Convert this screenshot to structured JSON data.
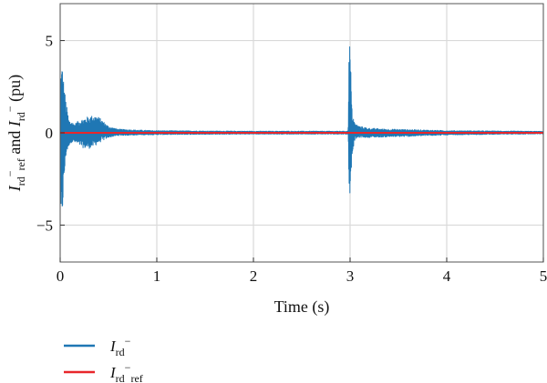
{
  "chart_data": {
    "type": "line",
    "xlabel": "Time (s)",
    "ylabel": {
      "sym1": "I",
      "sub1": "rd",
      "sup1": "−",
      "sub1b": "ref",
      "conj": " and ",
      "sym2": "I",
      "sub2": "rd",
      "sup2": "−",
      "unit": " (pu)"
    },
    "xlim": [
      0,
      5
    ],
    "ylim": [
      -7,
      7
    ],
    "xticks": [
      0,
      1,
      2,
      3,
      4,
      5
    ],
    "yticks": [
      -5,
      0,
      5
    ],
    "ytick_labels": [
      "−5",
      "0",
      "5"
    ],
    "grid": true,
    "legend_position": "below",
    "series": [
      {
        "key": "ird",
        "legend_sym": "I",
        "legend_sub": "rd",
        "legend_sup": "−",
        "legend_sub2": "",
        "color": "#1f77b4",
        "envelope": [
          [
            0.0,
            0.0,
            0.0
          ],
          [
            0.005,
            -5.6,
            3.6
          ],
          [
            0.02,
            -4.8,
            3.9
          ],
          [
            0.04,
            -2.8,
            2.6
          ],
          [
            0.06,
            -1.3,
            1.7
          ],
          [
            0.09,
            -0.7,
            0.7
          ],
          [
            0.12,
            -0.5,
            0.6
          ],
          [
            0.15,
            -0.55,
            0.5
          ],
          [
            0.2,
            -0.7,
            0.7
          ],
          [
            0.25,
            -0.85,
            0.8
          ],
          [
            0.3,
            -0.85,
            0.9
          ],
          [
            0.35,
            -0.75,
            0.95
          ],
          [
            0.4,
            -0.55,
            0.85
          ],
          [
            0.45,
            -0.4,
            0.6
          ],
          [
            0.5,
            -0.25,
            0.35
          ],
          [
            0.6,
            -0.15,
            0.2
          ],
          [
            0.8,
            -0.12,
            0.15
          ],
          [
            1.0,
            -0.1,
            0.12
          ],
          [
            1.5,
            -0.08,
            0.1
          ],
          [
            2.0,
            -0.07,
            0.09
          ],
          [
            2.5,
            -0.07,
            0.09
          ],
          [
            2.98,
            -0.07,
            0.09
          ],
          [
            2.99,
            -3.5,
            5.0
          ],
          [
            3.0,
            -3.3,
            4.8
          ],
          [
            3.02,
            -1.2,
            1.2
          ],
          [
            3.05,
            -0.35,
            0.5
          ],
          [
            3.1,
            -0.25,
            0.35
          ],
          [
            3.2,
            -0.25,
            0.25
          ],
          [
            3.4,
            -0.22,
            0.2
          ],
          [
            3.6,
            -0.2,
            0.18
          ],
          [
            3.8,
            -0.15,
            0.15
          ],
          [
            4.0,
            -0.12,
            0.12
          ],
          [
            4.5,
            -0.08,
            0.1
          ],
          [
            5.0,
            -0.06,
            0.08
          ]
        ]
      },
      {
        "key": "iref",
        "legend_sym": "I",
        "legend_sub": "rd",
        "legend_sup": "−",
        "legend_sub2": "ref",
        "color": "#e8262a",
        "x": [
          0,
          5
        ],
        "y": [
          0,
          0
        ]
      }
    ]
  }
}
